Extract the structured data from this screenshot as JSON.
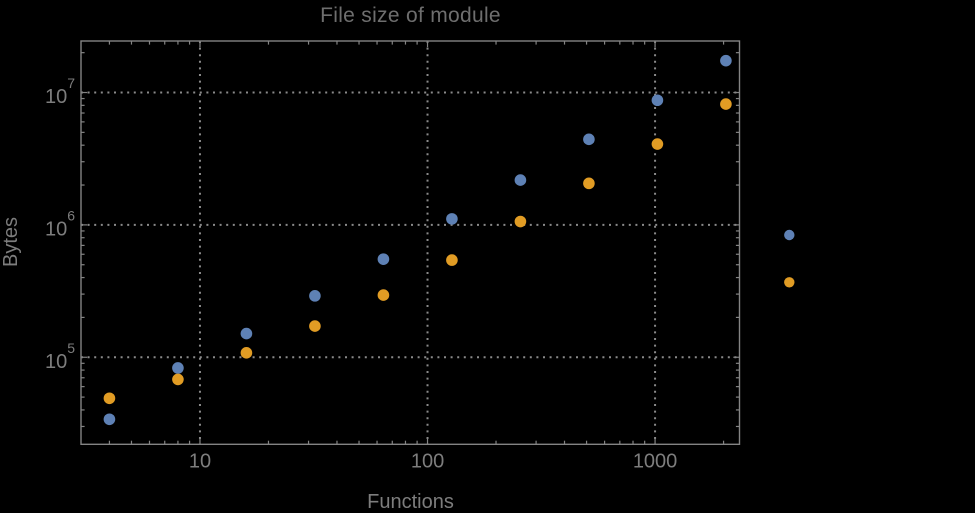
{
  "window": {
    "background": "#000000"
  },
  "chart_data": {
    "type": "scatter",
    "title": "File size of module",
    "xlabel": "Functions",
    "ylabel": "Bytes",
    "x_scale": "log",
    "y_scale": "log",
    "xlim": [
      3,
      2350
    ],
    "ylim": [
      22000,
      24500000
    ],
    "grid": {
      "style": "dotted",
      "x_lines": [
        10,
        100,
        1000
      ],
      "y_lines": [
        100000,
        1000000,
        10000000
      ]
    },
    "x_major_ticks": [
      10,
      100,
      1000
    ],
    "x_tick_labels": [
      "10",
      "100",
      "1000"
    ],
    "y_major_ticks": [
      100000,
      1000000,
      10000000
    ],
    "y_tick_labels": [
      {
        "base": "10",
        "exp": "5"
      },
      {
        "base": "10",
        "exp": "6"
      },
      {
        "base": "10",
        "exp": "7"
      }
    ],
    "legend": {
      "position": "right-center",
      "entries": [
        {
          "series": "blue",
          "color": "#5e81b5",
          "label": ""
        },
        {
          "series": "orange",
          "color": "#e19c24",
          "label": ""
        }
      ]
    },
    "series": [
      {
        "name": "blue",
        "color": "#5e81b5",
        "points": [
          [
            4,
            34000
          ],
          [
            8,
            83000
          ],
          [
            16,
            151000
          ],
          [
            32,
            291000
          ],
          [
            64,
            551000
          ],
          [
            128,
            1110000
          ],
          [
            256,
            2180000
          ],
          [
            512,
            4430000
          ],
          [
            1024,
            8740000
          ],
          [
            2048,
            17400000
          ]
        ]
      },
      {
        "name": "orange",
        "color": "#e19c24",
        "points": [
          [
            4,
            49000
          ],
          [
            8,
            68000
          ],
          [
            16,
            108000
          ],
          [
            32,
            172000
          ],
          [
            64,
            295000
          ],
          [
            128,
            542000
          ],
          [
            256,
            1060000
          ],
          [
            512,
            2060000
          ],
          [
            1024,
            4080000
          ],
          [
            2048,
            8180000
          ]
        ]
      }
    ]
  },
  "colors": {
    "background": "#000000",
    "frame": "#848484",
    "grid": "#8a8a8a",
    "tick": "#848484",
    "tick_label": "#7d7d7d",
    "title": "#6e6e6e"
  }
}
